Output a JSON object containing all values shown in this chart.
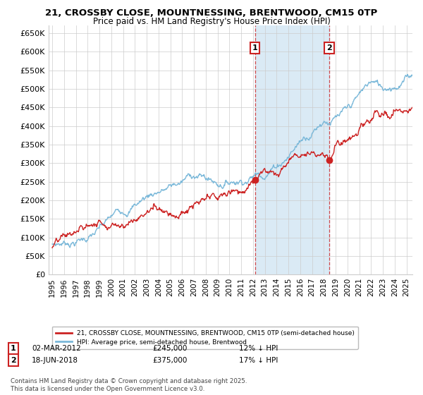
{
  "title": "21, CROSSBY CLOSE, MOUNTNESSING, BRENTWOOD, CM15 0TP",
  "subtitle": "Price paid vs. HM Land Registry's House Price Index (HPI)",
  "ylabel_ticks": [
    "£0",
    "£50K",
    "£100K",
    "£150K",
    "£200K",
    "£250K",
    "£300K",
    "£350K",
    "£400K",
    "£450K",
    "£500K",
    "£550K",
    "£600K",
    "£650K"
  ],
  "ytick_values": [
    0,
    50000,
    100000,
    150000,
    200000,
    250000,
    300000,
    350000,
    400000,
    450000,
    500000,
    550000,
    600000,
    650000
  ],
  "ylim": [
    0,
    670000
  ],
  "xlim_start": 1994.7,
  "xlim_end": 2025.5,
  "xticks": [
    1995,
    1996,
    1997,
    1998,
    1999,
    2000,
    2001,
    2002,
    2003,
    2004,
    2005,
    2006,
    2007,
    2008,
    2009,
    2010,
    2011,
    2012,
    2013,
    2014,
    2015,
    2016,
    2017,
    2018,
    2019,
    2020,
    2021,
    2022,
    2023,
    2024,
    2025
  ],
  "hpi_color": "#7ab8d9",
  "price_color": "#cc2222",
  "dashed_line_color": "#cc2222",
  "shade_color": "#daeaf5",
  "sale1_year": 2012.17,
  "sale1_price": 245000,
  "sale1_date": "02-MAR-2012",
  "sale1_hpi_pct": "12% ↓ HPI",
  "sale2_year": 2018.46,
  "sale2_price": 375000,
  "sale2_date": "18-JUN-2018",
  "sale2_hpi_pct": "17% ↓ HPI",
  "legend_label1": "21, CROSSBY CLOSE, MOUNTNESSING, BRENTWOOD, CM15 0TP (semi-detached house)",
  "legend_label2": "HPI: Average price, semi-detached house, Brentwood",
  "footnote": "Contains HM Land Registry data © Crown copyright and database right 2025.\nThis data is licensed under the Open Government Licence v3.0.",
  "bg_color": "#ffffff",
  "grid_color": "#cccccc",
  "hpi_noise_scale": 2800,
  "price_noise_scale": 3500,
  "num_points": 730
}
